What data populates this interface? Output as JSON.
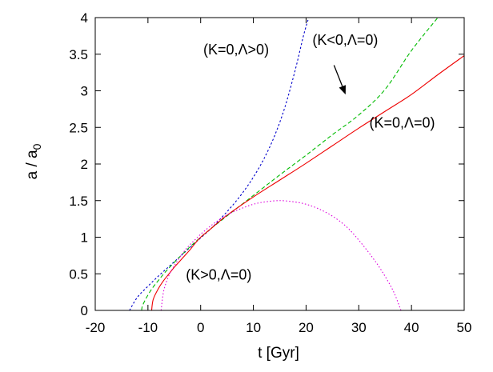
{
  "chart_data": {
    "type": "line",
    "xlabel": "t [Gyr]",
    "ylabel_main": "a / a",
    "ylabel_sub": "0",
    "xlim": [
      -20,
      50
    ],
    "ylim": [
      0,
      4
    ],
    "xticks": [
      -20,
      -10,
      0,
      10,
      20,
      30,
      40,
      50
    ],
    "yticks": [
      0,
      0.5,
      1,
      1.5,
      2,
      2.5,
      3,
      3.5,
      4
    ],
    "ytick_labels": [
      "0",
      "0.5",
      "1",
      "1.5",
      "2",
      "2.5",
      "3",
      "3.5",
      "4"
    ],
    "grid": false,
    "series": [
      {
        "name": "(K=0,Λ>0)",
        "color": "#0000cc",
        "dash": "dotted-short",
        "x": [
          -13.5,
          -12,
          -10,
          -8,
          -6,
          -4,
          -2,
          0,
          2,
          4,
          6,
          8,
          10,
          12,
          14,
          16,
          18,
          19.5,
          20.5
        ],
        "y": [
          0.0,
          0.18,
          0.33,
          0.47,
          0.6,
          0.73,
          0.86,
          0.99,
          1.12,
          1.27,
          1.43,
          1.61,
          1.82,
          2.07,
          2.38,
          2.78,
          3.3,
          3.75,
          4.0
        ]
      },
      {
        "name": "(K<0,Λ=0)",
        "color": "#00bb00",
        "dash": "dashed",
        "x": [
          -11.2,
          -11,
          -10,
          -9,
          -8,
          -7,
          -6,
          -4,
          -2,
          0,
          2,
          5,
          10,
          15,
          20,
          25,
          30,
          35,
          40,
          45
        ],
        "y": [
          0.0,
          0.07,
          0.21,
          0.32,
          0.41,
          0.5,
          0.58,
          0.73,
          0.87,
          1.0,
          1.12,
          1.29,
          1.57,
          1.85,
          2.12,
          2.4,
          2.67,
          3.02,
          3.55,
          4.0
        ]
      },
      {
        "name": "(K=0,Λ=0)",
        "color": "#ee0000",
        "dash": "solid",
        "x": [
          -9.3,
          -9,
          -8,
          -7,
          -6,
          -5,
          -4,
          -3,
          -2,
          -1,
          0,
          2,
          5,
          10,
          15,
          20,
          25,
          30,
          35,
          40,
          45,
          50
        ],
        "y": [
          0.0,
          0.15,
          0.3,
          0.41,
          0.5,
          0.59,
          0.67,
          0.75,
          0.83,
          0.92,
          1.0,
          1.12,
          1.3,
          1.55,
          1.78,
          2.01,
          2.25,
          2.49,
          2.72,
          2.95,
          3.22,
          3.48
        ]
      },
      {
        "name": "(K>0,Λ=0)",
        "color": "#dd00dd",
        "dash": "dotted",
        "x": [
          -7.5,
          -7,
          -6,
          -5,
          -4,
          -3,
          -2,
          -1,
          0,
          2,
          4,
          6,
          8,
          10,
          12,
          15,
          18,
          20,
          22,
          24,
          26,
          28,
          30,
          32,
          34,
          36,
          37,
          38
        ],
        "y": [
          0.0,
          0.27,
          0.48,
          0.61,
          0.72,
          0.82,
          0.9,
          0.97,
          1.04,
          1.16,
          1.26,
          1.34,
          1.4,
          1.45,
          1.48,
          1.5,
          1.48,
          1.45,
          1.4,
          1.33,
          1.24,
          1.12,
          0.96,
          0.78,
          0.58,
          0.34,
          0.19,
          0.0
        ]
      }
    ],
    "annotations": [
      {
        "text": "(K=0,Λ>0)",
        "x": 0.5,
        "y": 3.5
      },
      {
        "text": "(K<0,Λ=0)",
        "x": 21.2,
        "y": 3.63
      },
      {
        "text": "(K=0,Λ=0)",
        "x": 32,
        "y": 2.5
      },
      {
        "text": "(K>0,Λ=0)",
        "x": -2.8,
        "y": 0.42
      }
    ],
    "arrow": {
      "from": [
        25.3,
        3.35
      ],
      "to": [
        27.5,
        2.95
      ]
    }
  }
}
